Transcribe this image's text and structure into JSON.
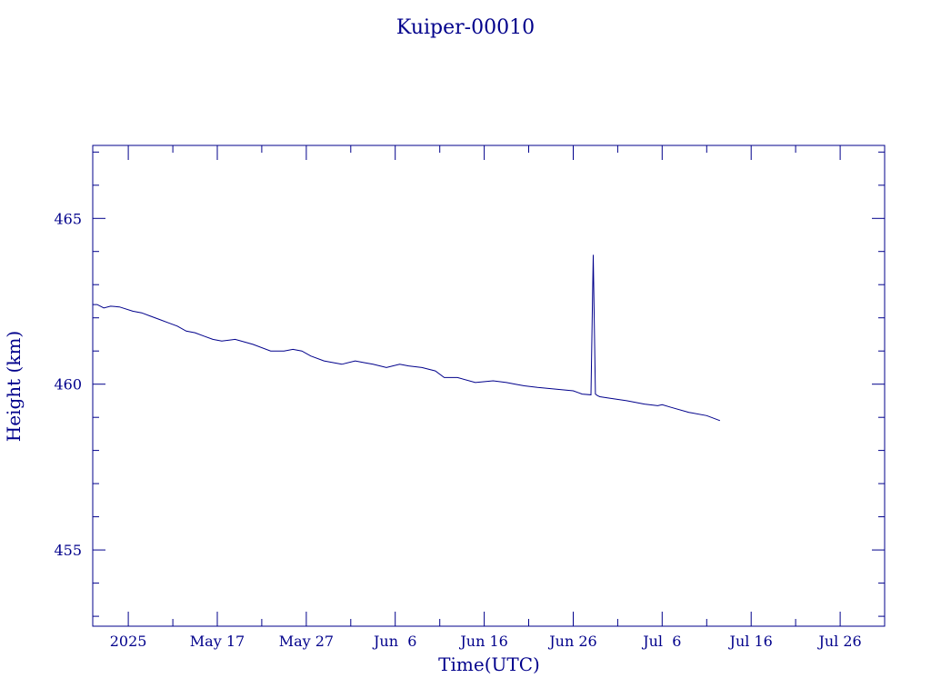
{
  "chart_data": {
    "type": "line",
    "title": "Kuiper-00010",
    "xlabel": "Time(UTC)",
    "ylabel": "Height (km)",
    "xlim": [
      "2025-05-03",
      "2025-07-31"
    ],
    "ylim": [
      452.7,
      467.2
    ],
    "grid": false,
    "x_ticks": [
      {
        "date": "2025-05-07",
        "label": "2025"
      },
      {
        "date": "2025-05-17",
        "label": "May 17"
      },
      {
        "date": "2025-05-27",
        "label": "May 27"
      },
      {
        "date": "2025-06-06",
        "label": "Jun  6"
      },
      {
        "date": "2025-06-16",
        "label": "Jun 16"
      },
      {
        "date": "2025-06-26",
        "label": "Jun 26"
      },
      {
        "date": "2025-07-06",
        "label": "Jul  6"
      },
      {
        "date": "2025-07-16",
        "label": "Jul 16"
      },
      {
        "date": "2025-07-26",
        "label": "Jul 26"
      }
    ],
    "x_minor_ticks": [
      "2025-05-12",
      "2025-05-22",
      "2025-06-01",
      "2025-06-11",
      "2025-06-21",
      "2025-07-01",
      "2025-07-11",
      "2025-07-21",
      "2025-07-31"
    ],
    "y_ticks": [
      {
        "value": 455,
        "label": "455"
      },
      {
        "value": 460,
        "label": "460"
      },
      {
        "value": 465,
        "label": "465"
      }
    ],
    "y_minor_ticks": [
      453,
      454,
      456,
      457,
      458,
      459,
      461,
      462,
      463,
      464,
      466,
      467
    ],
    "series": [
      {
        "color": "#00008b",
        "x": [
          "2025-05-03T00:00",
          "2025-05-03T12:00",
          "2025-05-04T06:00",
          "2025-05-05T00:00",
          "2025-05-06T00:00",
          "2025-05-07T12:00",
          "2025-05-08T12:00",
          "2025-05-09T12:00",
          "2025-05-10T12:00",
          "2025-05-11T12:00",
          "2025-05-12T12:00",
          "2025-05-13T12:00",
          "2025-05-14T12:00",
          "2025-05-15T12:00",
          "2025-05-16T12:00",
          "2025-05-17T12:00",
          "2025-05-19T00:00",
          "2025-05-21T00:00",
          "2025-05-23T00:00",
          "2025-05-24T12:00",
          "2025-05-25T12:00",
          "2025-05-26T12:00",
          "2025-05-27T12:00",
          "2025-05-29T00:00",
          "2025-05-31T00:00",
          "2025-06-01T12:00",
          "2025-06-02T12:00",
          "2025-06-03T12:00",
          "2025-06-05T00:00",
          "2025-06-06T12:00",
          "2025-06-07T12:00",
          "2025-06-09T00:00",
          "2025-06-10T12:00",
          "2025-06-11T12:00",
          "2025-06-13T00:00",
          "2025-06-15T00:00",
          "2025-06-17T00:00",
          "2025-06-18T12:00",
          "2025-06-19T12:00",
          "2025-06-20T12:00",
          "2025-06-22T00:00",
          "2025-06-24T00:00",
          "2025-06-26T00:00",
          "2025-06-27T00:00",
          "2025-06-28T00:00",
          "2025-06-28T06:00",
          "2025-06-28T12:00",
          "2025-06-28T18:00",
          "2025-06-29T00:00",
          "2025-06-29T12:00",
          "2025-06-30T00:00",
          "2025-07-02T00:00",
          "2025-07-04T00:00",
          "2025-07-05T12:00",
          "2025-07-06T00:00",
          "2025-07-07T00:00",
          "2025-07-09T00:00",
          "2025-07-11T00:00",
          "2025-07-12T12:00"
        ],
        "y": [
          462.4,
          462.4,
          462.3,
          462.35,
          462.33,
          462.2,
          462.15,
          462.05,
          461.95,
          461.85,
          461.75,
          461.6,
          461.55,
          461.45,
          461.35,
          461.3,
          461.35,
          461.2,
          461.0,
          461.0,
          461.05,
          461.0,
          460.85,
          460.7,
          460.6,
          460.7,
          460.65,
          460.6,
          460.5,
          460.6,
          460.55,
          460.5,
          460.4,
          460.2,
          460.2,
          460.05,
          460.1,
          460.05,
          460.0,
          459.95,
          459.9,
          459.85,
          459.8,
          459.7,
          459.68,
          463.9,
          459.7,
          459.65,
          459.62,
          459.6,
          459.58,
          459.5,
          459.4,
          459.35,
          459.38,
          459.3,
          459.15,
          459.05,
          458.9
        ]
      }
    ]
  }
}
